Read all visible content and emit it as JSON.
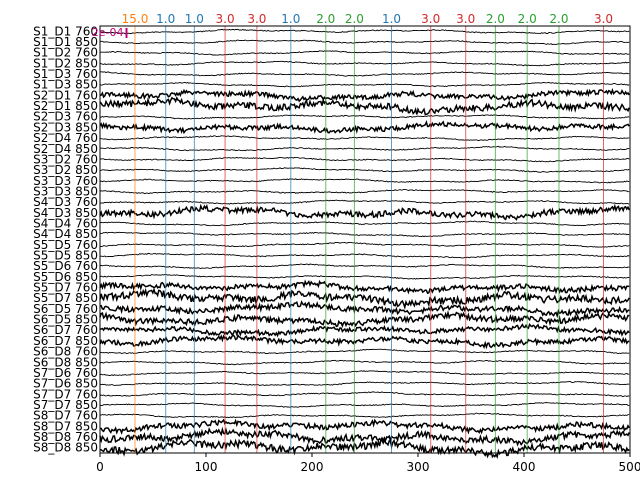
{
  "chart_data": {
    "type": "line",
    "title": "",
    "xlabel": "",
    "ylabel": "",
    "xlim": [
      0,
      500
    ],
    "xticks": [
      0,
      100,
      200,
      300,
      400,
      500
    ],
    "grid": false,
    "channels": [
      "S1_D1 760",
      "S1_D1 850",
      "S1_D2 760",
      "S1_D2 850",
      "S1_D3 760",
      "S1_D3 850",
      "S2_D1 760",
      "S2_D1 850",
      "S2_D3 760",
      "S2_D3 850",
      "S2_D4 760",
      "S2_D4 850",
      "S3_D2 760",
      "S3_D2 850",
      "S3_D3 760",
      "S3_D3 850",
      "S4_D3 760",
      "S4_D3 850",
      "S4_D4 760",
      "S4_D4 850",
      "S5_D5 760",
      "S5_D5 850",
      "S5_D6 760",
      "S5_D6 850",
      "S5_D7 760",
      "S5_D7 850",
      "S6_D5 760",
      "S6_D5 850",
      "S6_D7 760",
      "S6_D7 850",
      "S6_D8 760",
      "S6_D8 850",
      "S7_D6 760",
      "S7_D6 850",
      "S7_D7 760",
      "S7_D7 850",
      "S8_D7 760",
      "S8_D7 850",
      "S8_D8 760",
      "S8_D8 850"
    ],
    "events": [
      {
        "x": 0,
        "label": "",
        "color": "#2ca02c"
      },
      {
        "x": 33,
        "label": "15.0",
        "color": "#ff7f0e"
      },
      {
        "x": 62,
        "label": "1.0",
        "color": "#1f77b4"
      },
      {
        "x": 89,
        "label": "1.0",
        "color": "#1f77b4"
      },
      {
        "x": 118,
        "label": "3.0",
        "color": "#d62728"
      },
      {
        "x": 148,
        "label": "3.0",
        "color": "#d62728"
      },
      {
        "x": 180,
        "label": "1.0",
        "color": "#1f77b4"
      },
      {
        "x": 213,
        "label": "2.0",
        "color": "#2ca02c"
      },
      {
        "x": 240,
        "label": "2.0",
        "color": "#2ca02c"
      },
      {
        "x": 275,
        "label": "1.0",
        "color": "#1f77b4"
      },
      {
        "x": 312,
        "label": "3.0",
        "color": "#d62728"
      },
      {
        "x": 345,
        "label": "3.0",
        "color": "#d62728"
      },
      {
        "x": 373,
        "label": "2.0",
        "color": "#2ca02c"
      },
      {
        "x": 403,
        "label": "2.0",
        "color": "#2ca02c"
      },
      {
        "x": 433,
        "label": "2.0",
        "color": "#2ca02c"
      },
      {
        "x": 475,
        "label": "3.0",
        "color": "#d62728"
      }
    ],
    "scale_bar": {
      "label": "2e-04",
      "color": "#c0007a"
    },
    "trace_color": "#000000"
  }
}
